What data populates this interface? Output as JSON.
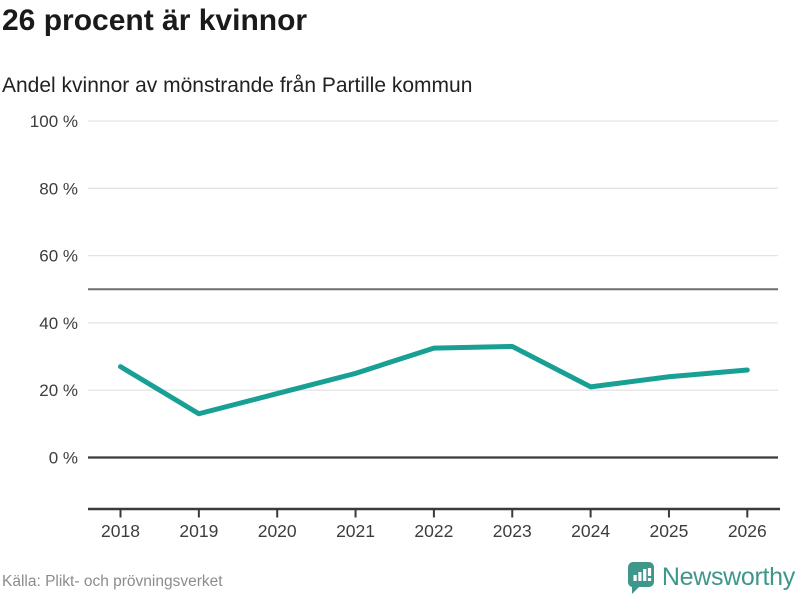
{
  "chart_data": {
    "type": "line",
    "title": "26 procent är kvinnor",
    "subtitle": "Andel kvinnor av mönstrande från Partille kommun",
    "source": "Källa: Plikt- och prövningsverket",
    "x": [
      "2018",
      "2019",
      "2020",
      "2021",
      "2022",
      "2023",
      "2024",
      "2025",
      "2026"
    ],
    "series": [
      {
        "name": "Andel kvinnor av mönstrande",
        "values": [
          27,
          13,
          19,
          25,
          32.5,
          33,
          21,
          24,
          26
        ]
      }
    ],
    "unit": "%",
    "ylim": [
      0,
      100
    ],
    "yticks": [
      {
        "value": 0,
        "label": "0 %"
      },
      {
        "value": 20,
        "label": "20 %"
      },
      {
        "value": 40,
        "label": "40 %"
      },
      {
        "value": 60,
        "label": "60 %"
      },
      {
        "value": 80,
        "label": "80 %"
      },
      {
        "value": 100,
        "label": "100 %"
      }
    ],
    "reference_line_value": 50,
    "grid": "horizontal",
    "legend": "none",
    "line_color": "#18a095"
  },
  "branding": {
    "logo_text": "Newsworthy",
    "logo_color": "#3f968b"
  },
  "colors": {
    "accent_line": "#18a095",
    "grid_light": "#e4e4e4",
    "grid_reference": "#6e6e6e",
    "axis": "#3a3a3a",
    "tick_text": "#3d3d3d",
    "text_dark": "#1a1a1a",
    "text_muted": "#8c8c8c"
  }
}
